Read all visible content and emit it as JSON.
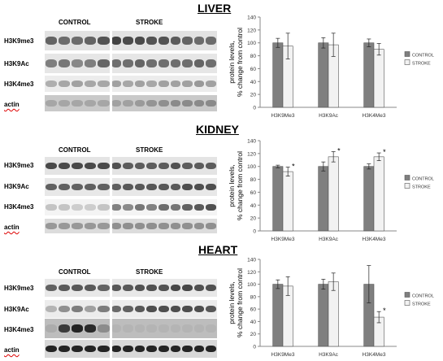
{
  "panels": [
    {
      "title": "LIVER",
      "groups": [
        "CONTROL",
        "STROKE"
      ],
      "blots": [
        {
          "label": "H3K9me3",
          "bg": "#e2e2e2",
          "band": "#3a3a3a",
          "control": [
            0.75,
            0.7,
            0.7,
            0.75,
            0.85
          ],
          "stroke": [
            0.95,
            0.9,
            0.9,
            0.85,
            0.85,
            0.8,
            0.75,
            0.7,
            0.7
          ]
        },
        {
          "label": "H3K9Ac",
          "bg": "#e6e6e6",
          "band": "#3a3a3a",
          "control": [
            0.6,
            0.65,
            0.55,
            0.6,
            0.75
          ],
          "stroke": [
            0.7,
            0.7,
            0.75,
            0.7,
            0.7,
            0.7,
            0.7,
            0.75,
            0.7
          ]
        },
        {
          "label": "H3K4me3",
          "bg": "#ececec",
          "band": "#555555",
          "control": [
            0.4,
            0.45,
            0.5,
            0.45,
            0.45
          ],
          "stroke": [
            0.5,
            0.45,
            0.5,
            0.45,
            0.5,
            0.5,
            0.5,
            0.55,
            0.5
          ]
        },
        {
          "label": "actin",
          "bg": "#c9c9c9",
          "band": "#555555",
          "control": [
            0.3,
            0.3,
            0.3,
            0.3,
            0.3
          ],
          "stroke": [
            0.35,
            0.35,
            0.4,
            0.45,
            0.5,
            0.55,
            0.55,
            0.55,
            0.55
          ]
        }
      ],
      "chart_data": {
        "type": "bar",
        "categories": [
          "H3K9Me3",
          "H3K9Ac",
          "H3K4Me3"
        ],
        "series": [
          {
            "name": "CONTROL",
            "values": [
              100,
              100,
              100
            ],
            "errors": [
              7,
              8,
              6
            ],
            "color": "#7f7f7f"
          },
          {
            "name": "STROKE",
            "values": [
              95,
              97,
              90
            ],
            "errors": [
              20,
              18,
              9
            ],
            "color": "#f2f2f2"
          }
        ],
        "significance": [
          false,
          false,
          false
        ],
        "ylabel": "protein levels,\n% change from control",
        "ylim": [
          0,
          140
        ],
        "yticks": [
          0,
          20,
          40,
          60,
          80,
          100,
          120,
          140
        ],
        "legend": "right"
      }
    },
    {
      "title": "KIDNEY",
      "groups": [
        "CONTROL",
        "STROKE"
      ],
      "blots": [
        {
          "label": "H3K9me3",
          "bg": "#e4e4e4",
          "band": "#222222",
          "control": [
            0.8,
            0.8,
            0.8,
            0.8,
            0.8
          ],
          "stroke": [
            0.75,
            0.7,
            0.7,
            0.7,
            0.7,
            0.75,
            0.7,
            0.7,
            0.7
          ]
        },
        {
          "label": "H3K9Ac",
          "bg": "#e8e8e8",
          "band": "#333333",
          "control": [
            0.75,
            0.75,
            0.75,
            0.75,
            0.75
          ],
          "stroke": [
            0.75,
            0.8,
            0.8,
            0.8,
            0.8,
            0.8,
            0.85,
            0.85,
            0.85
          ]
        },
        {
          "label": "H3K4me3",
          "bg": "#f4f4f4",
          "band": "#333333",
          "control": [
            0.25,
            0.25,
            0.2,
            0.2,
            0.25
          ],
          "stroke": [
            0.6,
            0.55,
            0.65,
            0.6,
            0.7,
            0.65,
            0.75,
            0.8,
            0.85
          ]
        },
        {
          "label": "actin",
          "bg": "#dcdcdc",
          "band": "#444444",
          "control": [
            0.45,
            0.45,
            0.45,
            0.45,
            0.45
          ],
          "stroke": [
            0.5,
            0.5,
            0.5,
            0.5,
            0.5,
            0.5,
            0.5,
            0.5,
            0.5
          ]
        }
      ],
      "chart_data": {
        "type": "bar",
        "categories": [
          "H3K9Me3",
          "H3K9Ac",
          "H3K4Me3"
        ],
        "series": [
          {
            "name": "CONTROL",
            "values": [
              100,
              100,
              100
            ],
            "errors": [
              2,
              7,
              4
            ],
            "color": "#7f7f7f"
          },
          {
            "name": "STROKE",
            "values": [
              92,
              115,
              115
            ],
            "errors": [
              7,
              8,
              6
            ],
            "color": "#f2f2f2"
          }
        ],
        "significance": [
          true,
          true,
          true
        ],
        "significance_mark": "*",
        "ylabel": "protein levels,\n% change from control",
        "ylim": [
          0,
          140
        ],
        "yticks": [
          0,
          20,
          40,
          60,
          80,
          100,
          120,
          140
        ],
        "legend": "right"
      }
    },
    {
      "title": "HEART",
      "groups": [
        "CONTROL",
        "STROKE"
      ],
      "blots": [
        {
          "label": "H3K9me3",
          "bg": "#e8e8e8",
          "band": "#2a2a2a",
          "control": [
            0.7,
            0.75,
            0.75,
            0.75,
            0.7
          ],
          "stroke": [
            0.75,
            0.75,
            0.8,
            0.8,
            0.8,
            0.85,
            0.85,
            0.8,
            0.8
          ]
        },
        {
          "label": "H3K9Ac",
          "bg": "#ececec",
          "band": "#333333",
          "control": [
            0.3,
            0.5,
            0.6,
            0.4,
            0.6
          ],
          "stroke": [
            0.7,
            0.75,
            0.8,
            0.85,
            0.85,
            0.85,
            0.85,
            0.85,
            0.8
          ]
        },
        {
          "label": "H3K4me3",
          "bg": "#bdbdbd",
          "band": "#1a1a1a",
          "control": [
            0.1,
            0.8,
            0.95,
            0.9,
            0.3
          ],
          "stroke": [
            0.05,
            0.05,
            0.05,
            0.05,
            0.05,
            0.05,
            0.05,
            0.05,
            0.05
          ]
        },
        {
          "label": "actin",
          "bg": "#d8d8d8",
          "band": "#111111",
          "control": [
            0.9,
            0.9,
            0.9,
            0.9,
            0.9
          ],
          "stroke": [
            0.9,
            0.9,
            0.9,
            0.9,
            0.9,
            0.9,
            0.9,
            0.9,
            0.9
          ]
        }
      ],
      "chart_data": {
        "type": "bar",
        "categories": [
          "H3K9Me3",
          "H3K9Ac",
          "H3K4Me3"
        ],
        "series": [
          {
            "name": "CONTROL",
            "values": [
              100,
              100,
              100
            ],
            "errors": [
              7,
              8,
              30
            ],
            "color": "#7f7f7f"
          },
          {
            "name": "STROKE",
            "values": [
              97,
              104,
              47
            ],
            "errors": [
              15,
              14,
              9
            ],
            "color": "#f2f2f2"
          }
        ],
        "significance": [
          false,
          false,
          true
        ],
        "significance_mark": "*",
        "ylabel": "protein levels,\n% change from control",
        "ylim": [
          0,
          140
        ],
        "yticks": [
          0,
          20,
          40,
          60,
          80,
          100,
          120,
          140
        ],
        "legend": "right"
      }
    }
  ]
}
